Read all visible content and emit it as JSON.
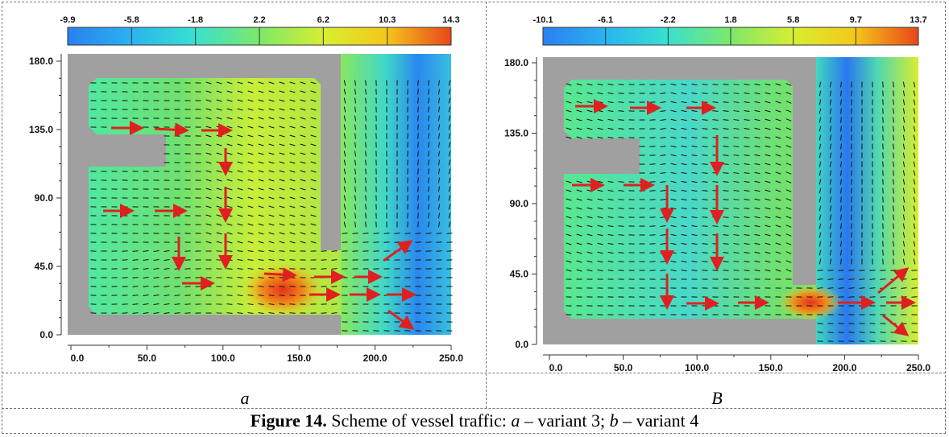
{
  "panels": [
    {
      "id": "a",
      "label": "a",
      "colorbar_ticks": [
        "-9.9",
        "-5.8",
        "-1.8",
        "2.2",
        "6.2",
        "10.3",
        "14.3"
      ],
      "y_ticks": [
        "180.0",
        "135.0",
        "90.0",
        "45.0",
        "0.0"
      ],
      "x_ticks": [
        "0.0",
        "50.0",
        "100.0",
        "150.0",
        "200.0",
        "250.0"
      ]
    },
    {
      "id": "b",
      "label": "B",
      "colorbar_ticks": [
        "-10.1",
        "-6.1",
        "-2.2",
        "1.8",
        "5.8",
        "9.7",
        "13.7"
      ],
      "y_ticks": [
        "180.0",
        "135.0",
        "90.0",
        "45.0",
        "0.0"
      ],
      "x_ticks": [
        "0.0",
        "50.0",
        "100.0",
        "150.0",
        "200.0",
        "250.0"
      ]
    }
  ],
  "caption": {
    "bold": "Figure 14.",
    "pre": " Scheme of vessel traffic: ",
    "a_letter": "a",
    "mid": " – variant 3; ",
    "b_letter": "b",
    "post": " – variant 4"
  },
  "colors": {
    "low": "#2a8cf0",
    "mid": "#7ee86a",
    "high": "#e84a1a",
    "land": "#a0a0a0",
    "arrow": "#e02020"
  }
}
